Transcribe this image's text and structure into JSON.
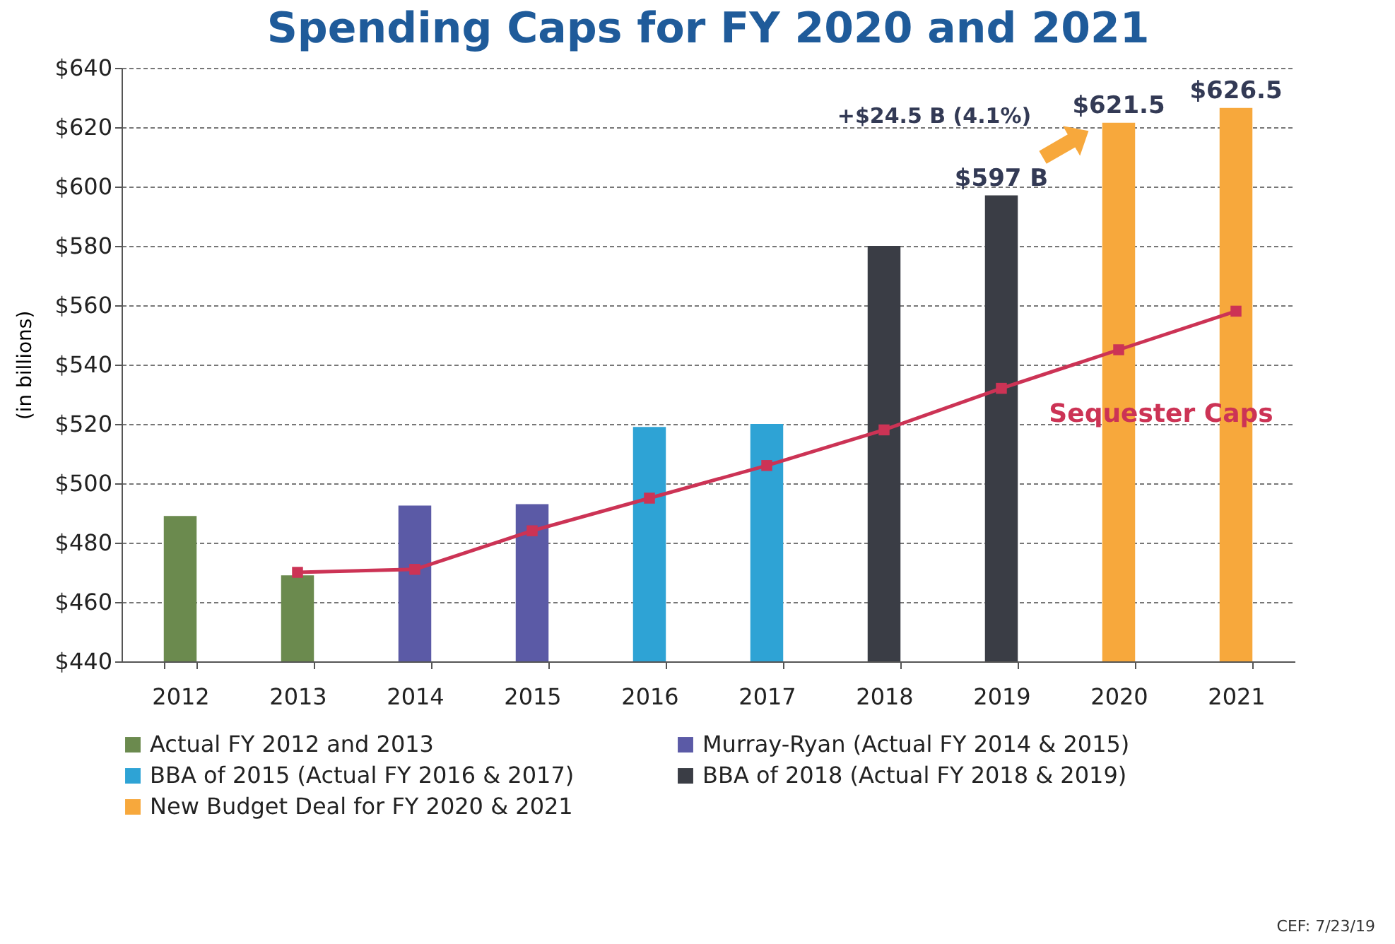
{
  "chart_data": {
    "type": "bar",
    "title": "Spending Caps for FY 2020 and 2021",
    "ylabel": "(in billions)",
    "categories": [
      "2012",
      "2013",
      "2014",
      "2015",
      "2016",
      "2017",
      "2018",
      "2019",
      "2020",
      "2021"
    ],
    "series": [
      {
        "name": "Actual FY 2012 and 2013",
        "color": "#6b8a4e",
        "values": [
          489,
          469,
          null,
          null,
          null,
          null,
          null,
          null,
          null,
          null
        ]
      },
      {
        "name": "Murray-Ryan (Actual FY 2014 & 2015)",
        "color": "#5b5aa6",
        "values": [
          null,
          null,
          492.5,
          493,
          null,
          null,
          null,
          null,
          null,
          null
        ]
      },
      {
        "name": "BBA of 2015 (Actual FY 2016 & 2017)",
        "color": "#2ea3d5",
        "values": [
          null,
          null,
          null,
          null,
          519,
          520,
          null,
          null,
          null,
          null
        ]
      },
      {
        "name": "BBA of 2018 (Actual FY 2018 & 2019)",
        "color": "#3a3d45",
        "values": [
          null,
          null,
          null,
          null,
          null,
          null,
          580,
          597,
          null,
          null
        ],
        "value_labels": [
          null,
          null,
          null,
          null,
          null,
          null,
          null,
          "$597 B",
          null,
          null
        ]
      },
      {
        "name": "New Budget Deal for FY 2020 & 2021",
        "color": "#f7a83c",
        "values": [
          null,
          null,
          null,
          null,
          null,
          null,
          null,
          null,
          621.5,
          626.5
        ],
        "value_labels": [
          null,
          null,
          null,
          null,
          null,
          null,
          null,
          null,
          "$621.5",
          "$626.5"
        ]
      },
      {
        "name": "Sequester Caps",
        "type": "line",
        "color": "#cc3355",
        "values": [
          null,
          470,
          471,
          484,
          495,
          506,
          518,
          532,
          545,
          558
        ]
      }
    ],
    "ylim": [
      440,
      640
    ],
    "yticks": [
      {
        "value": 440,
        "label": "$440"
      },
      {
        "value": 460,
        "label": "$460"
      },
      {
        "value": 480,
        "label": "$480"
      },
      {
        "value": 500,
        "label": "$500"
      },
      {
        "value": 520,
        "label": "$520"
      },
      {
        "value": 540,
        "label": "$540"
      },
      {
        "value": 560,
        "label": "$560"
      },
      {
        "value": 580,
        "label": "$580"
      },
      {
        "value": 600,
        "label": "$600"
      },
      {
        "value": 620,
        "label": "$620"
      },
      {
        "value": 640,
        "label": "$640"
      }
    ],
    "grid": "y",
    "marker": "square",
    "legend": "bottom",
    "annotations": [
      "+$24.5 B (4.1%)",
      "CEF: 7/23/19"
    ]
  }
}
